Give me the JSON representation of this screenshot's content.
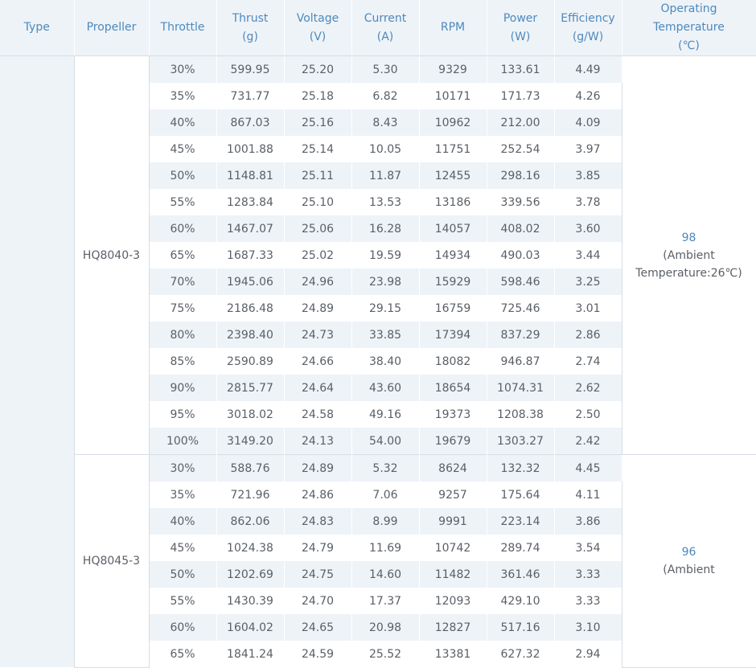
{
  "headers": [
    {
      "line1": "Type",
      "line2": ""
    },
    {
      "line1": "Propeller",
      "line2": ""
    },
    {
      "line1": "Throttle",
      "line2": ""
    },
    {
      "line1": "Thrust",
      "line2": "(g)"
    },
    {
      "line1": "Voltage",
      "line2": "(V)"
    },
    {
      "line1": "Current",
      "line2": "(A)"
    },
    {
      "line1": "RPM",
      "line2": ""
    },
    {
      "line1": "Power",
      "line2": "(W)"
    },
    {
      "line1": "Efficiency",
      "line2": "(g/W)"
    },
    {
      "line1": "Operating",
      "line2": "Temperature",
      "line3": "(℃)"
    }
  ],
  "type": "",
  "groups": [
    {
      "propeller": "HQ8040-3",
      "temperature": "98",
      "temperature_note_1": "(Ambient",
      "temperature_note_2": "Temperature:26℃)",
      "rows": [
        [
          "30%",
          "599.95",
          "25.20",
          "5.30",
          "9329",
          "133.61",
          "4.49"
        ],
        [
          "35%",
          "731.77",
          "25.18",
          "6.82",
          "10171",
          "171.73",
          "4.26"
        ],
        [
          "40%",
          "867.03",
          "25.16",
          "8.43",
          "10962",
          "212.00",
          "4.09"
        ],
        [
          "45%",
          "1001.88",
          "25.14",
          "10.05",
          "11751",
          "252.54",
          "3.97"
        ],
        [
          "50%",
          "1148.81",
          "25.11",
          "11.87",
          "12455",
          "298.16",
          "3.85"
        ],
        [
          "55%",
          "1283.84",
          "25.10",
          "13.53",
          "13186",
          "339.56",
          "3.78"
        ],
        [
          "60%",
          "1467.07",
          "25.06",
          "16.28",
          "14057",
          "408.02",
          "3.60"
        ],
        [
          "65%",
          "1687.33",
          "25.02",
          "19.59",
          "14934",
          "490.03",
          "3.44"
        ],
        [
          "70%",
          "1945.06",
          "24.96",
          "23.98",
          "15929",
          "598.46",
          "3.25"
        ],
        [
          "75%",
          "2186.48",
          "24.89",
          "29.15",
          "16759",
          "725.46",
          "3.01"
        ],
        [
          "80%",
          "2398.40",
          "24.73",
          "33.85",
          "17394",
          "837.29",
          "2.86"
        ],
        [
          "85%",
          "2590.89",
          "24.66",
          "38.40",
          "18082",
          "946.87",
          "2.74"
        ],
        [
          "90%",
          "2815.77",
          "24.64",
          "43.60",
          "18654",
          "1074.31",
          "2.62"
        ],
        [
          "95%",
          "3018.02",
          "24.58",
          "49.16",
          "19373",
          "1208.38",
          "2.50"
        ],
        [
          "100%",
          "3149.20",
          "24.13",
          "54.00",
          "19679",
          "1303.27",
          "2.42"
        ]
      ]
    },
    {
      "propeller": "HQ8045-3",
      "temperature": "96",
      "temperature_note_1": "(Ambient",
      "temperature_note_2": "",
      "rows": [
        [
          "30%",
          "588.76",
          "24.89",
          "5.32",
          "8624",
          "132.32",
          "4.45"
        ],
        [
          "35%",
          "721.96",
          "24.86",
          "7.06",
          "9257",
          "175.64",
          "4.11"
        ],
        [
          "40%",
          "862.06",
          "24.83",
          "8.99",
          "9991",
          "223.14",
          "3.86"
        ],
        [
          "45%",
          "1024.38",
          "24.79",
          "11.69",
          "10742",
          "289.74",
          "3.54"
        ],
        [
          "50%",
          "1202.69",
          "24.75",
          "14.60",
          "11482",
          "361.46",
          "3.33"
        ],
        [
          "55%",
          "1430.39",
          "24.70",
          "17.37",
          "12093",
          "429.10",
          "3.33"
        ],
        [
          "60%",
          "1604.02",
          "24.65",
          "20.98",
          "12827",
          "517.16",
          "3.10"
        ],
        [
          "65%",
          "1841.24",
          "24.59",
          "25.52",
          "13381",
          "627.32",
          "2.94"
        ]
      ]
    }
  ]
}
